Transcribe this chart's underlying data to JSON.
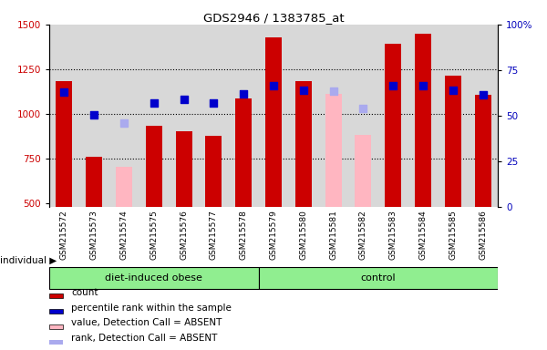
{
  "title": "GDS2946 / 1383785_at",
  "samples": [
    "GSM215572",
    "GSM215573",
    "GSM215574",
    "GSM215575",
    "GSM215576",
    "GSM215577",
    "GSM215578",
    "GSM215579",
    "GSM215580",
    "GSM215581",
    "GSM215582",
    "GSM215583",
    "GSM215584",
    "GSM215585",
    "GSM215586"
  ],
  "groups": [
    "diet-induced obese",
    "diet-induced obese",
    "diet-induced obese",
    "diet-induced obese",
    "diet-induced obese",
    "diet-induced obese",
    "diet-induced obese",
    "control",
    "control",
    "control",
    "control",
    "control",
    "control",
    "control",
    "control"
  ],
  "bar_values": [
    1185,
    760,
    700,
    930,
    900,
    875,
    1085,
    1430,
    1185,
    1110,
    880,
    1390,
    1450,
    1215,
    1105
  ],
  "bar_colors": [
    "#cc0000",
    "#cc0000",
    "#ffb6c1",
    "#cc0000",
    "#cc0000",
    "#cc0000",
    "#cc0000",
    "#cc0000",
    "#cc0000",
    "#ffb6c1",
    "#ffb6c1",
    "#cc0000",
    "#cc0000",
    "#cc0000",
    "#cc0000"
  ],
  "rank_values": [
    1120,
    995,
    950,
    1060,
    1080,
    1060,
    1110,
    1155,
    1130,
    1125,
    1030,
    1155,
    1155,
    1130,
    1105
  ],
  "rank_colors": [
    "#0000cc",
    "#0000cc",
    "#aaaaee",
    "#0000cc",
    "#0000cc",
    "#0000cc",
    "#0000cc",
    "#0000cc",
    "#0000cc",
    "#aaaaee",
    "#aaaaee",
    "#0000cc",
    "#0000cc",
    "#0000cc",
    "#0000cc"
  ],
  "ylim_left": [
    480,
    1500
  ],
  "ylim_right": [
    0,
    100
  ],
  "yticks_left": [
    500,
    750,
    1000,
    1250,
    1500
  ],
  "yticks_right": [
    0,
    25,
    50,
    75,
    100
  ],
  "ylabel_left_color": "#cc0000",
  "ylabel_right_color": "#0000bb",
  "plot_bg_color": "#d8d8d8",
  "dotted_line_values": [
    750,
    1000,
    1250
  ],
  "bar_width": 0.55,
  "rank_marker_size": 40,
  "group_color": "#90ee90",
  "legend_items": [
    {
      "label": "count",
      "color": "#cc0000"
    },
    {
      "label": "percentile rank within the sample",
      "color": "#0000cc"
    },
    {
      "label": "value, Detection Call = ABSENT",
      "color": "#ffb6c1"
    },
    {
      "label": "rank, Detection Call = ABSENT",
      "color": "#aaaaee"
    }
  ]
}
